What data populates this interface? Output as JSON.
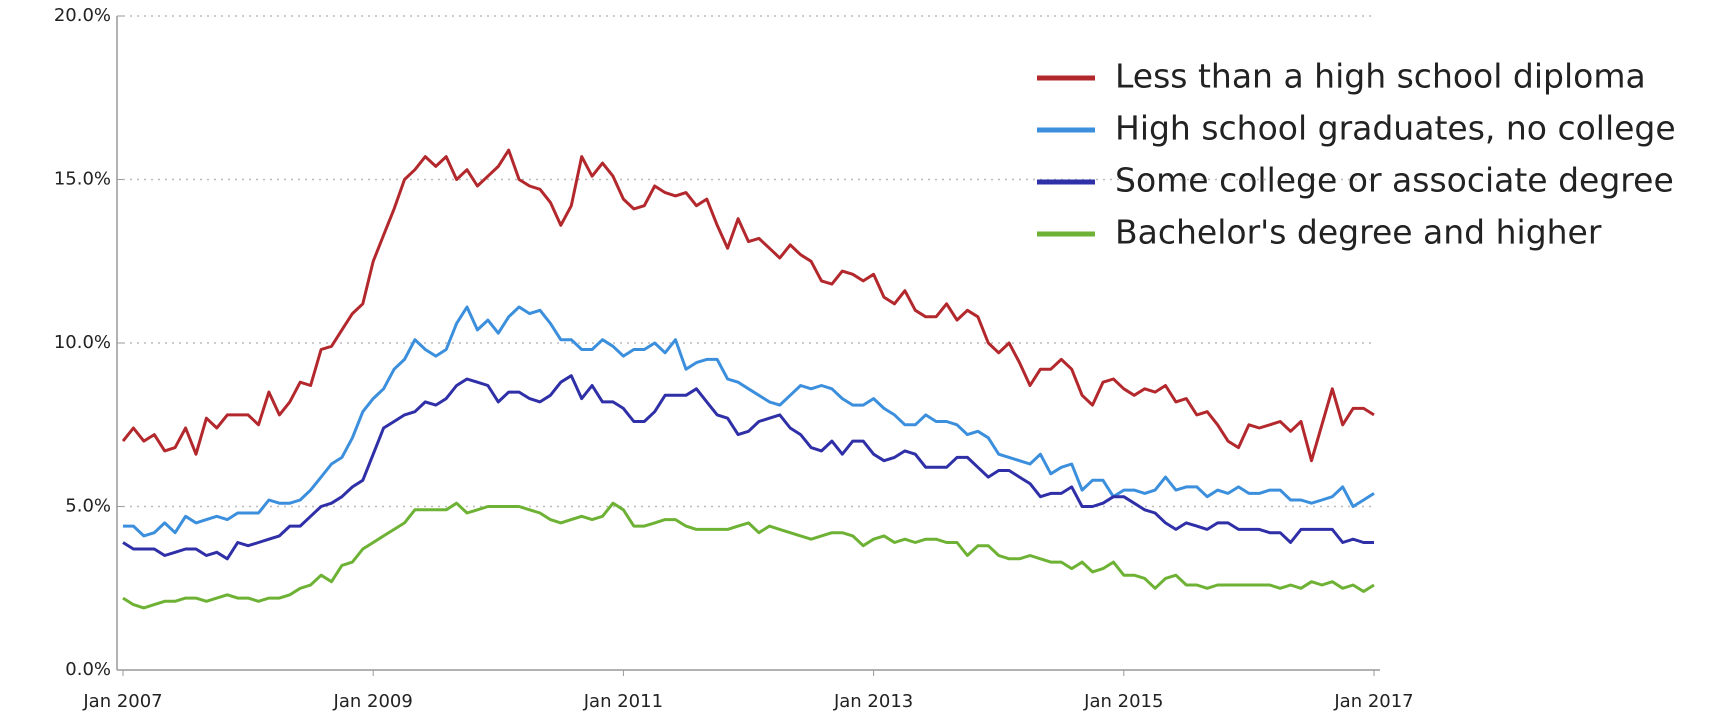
{
  "chart_data": {
    "type": "line",
    "x": [
      "2007-01",
      "2007-02",
      "2007-03",
      "2007-04",
      "2007-05",
      "2007-06",
      "2007-07",
      "2007-08",
      "2007-09",
      "2007-10",
      "2007-11",
      "2007-12",
      "2008-01",
      "2008-02",
      "2008-03",
      "2008-04",
      "2008-05",
      "2008-06",
      "2008-07",
      "2008-08",
      "2008-09",
      "2008-10",
      "2008-11",
      "2008-12",
      "2009-01",
      "2009-02",
      "2009-03",
      "2009-04",
      "2009-05",
      "2009-06",
      "2009-07",
      "2009-08",
      "2009-09",
      "2009-10",
      "2009-11",
      "2009-12",
      "2010-01",
      "2010-02",
      "2010-03",
      "2010-04",
      "2010-05",
      "2010-06",
      "2010-07",
      "2010-08",
      "2010-09",
      "2010-10",
      "2010-11",
      "2010-12",
      "2011-01",
      "2011-02",
      "2011-03",
      "2011-04",
      "2011-05",
      "2011-06",
      "2011-07",
      "2011-08",
      "2011-09",
      "2011-10",
      "2011-11",
      "2011-12",
      "2012-01",
      "2012-02",
      "2012-03",
      "2012-04",
      "2012-05",
      "2012-06",
      "2012-07",
      "2012-08",
      "2012-09",
      "2012-10",
      "2012-11",
      "2012-12",
      "2013-01",
      "2013-02",
      "2013-03",
      "2013-04",
      "2013-05",
      "2013-06",
      "2013-07",
      "2013-08",
      "2013-09",
      "2013-10",
      "2013-11",
      "2013-12",
      "2014-01",
      "2014-02",
      "2014-03",
      "2014-04",
      "2014-05",
      "2014-06",
      "2014-07",
      "2014-08",
      "2014-09",
      "2014-10",
      "2014-11",
      "2014-12",
      "2015-01",
      "2015-02",
      "2015-03",
      "2015-04",
      "2015-05",
      "2015-06",
      "2015-07",
      "2015-08",
      "2015-09",
      "2015-10",
      "2015-11",
      "2015-12",
      "2016-01",
      "2016-02",
      "2016-03",
      "2016-04",
      "2016-05",
      "2016-06",
      "2016-07",
      "2016-08",
      "2016-09",
      "2016-10",
      "2016-11",
      "2016-12",
      "2017-01"
    ],
    "series": [
      {
        "name": "Less than a high school diploma",
        "color": "#b3282d",
        "values": [
          7.0,
          7.4,
          7.0,
          7.2,
          6.7,
          6.8,
          7.4,
          6.6,
          7.7,
          7.4,
          7.8,
          7.8,
          7.8,
          7.5,
          8.5,
          7.8,
          8.2,
          8.8,
          8.7,
          9.8,
          9.9,
          10.4,
          10.9,
          11.2,
          12.5,
          13.3,
          14.1,
          15.0,
          15.3,
          15.7,
          15.4,
          15.7,
          15.0,
          15.3,
          14.8,
          15.1,
          15.4,
          15.9,
          15.0,
          14.8,
          14.7,
          14.3,
          13.6,
          14.2,
          15.7,
          15.1,
          15.5,
          15.1,
          14.4,
          14.1,
          14.2,
          14.8,
          14.6,
          14.5,
          14.6,
          14.2,
          14.4,
          13.6,
          12.9,
          13.8,
          13.1,
          13.2,
          12.9,
          12.6,
          13.0,
          12.7,
          12.5,
          11.9,
          11.8,
          12.2,
          12.1,
          11.9,
          12.1,
          11.4,
          11.2,
          11.6,
          11.0,
          10.8,
          10.8,
          11.2,
          10.7,
          11.0,
          10.8,
          10.0,
          9.7,
          10.0,
          9.4,
          8.7,
          9.2,
          9.2,
          9.5,
          9.2,
          8.4,
          8.1,
          8.8,
          8.9,
          8.6,
          8.4,
          8.6,
          8.5,
          8.7,
          8.2,
          8.3,
          7.8,
          7.9,
          7.5,
          7.0,
          6.8,
          7.5,
          7.4,
          7.5,
          7.6,
          7.3,
          7.6,
          6.4,
          7.5,
          8.6,
          7.5,
          8.0,
          8.0,
          7.8
        ]
      },
      {
        "name": "High school graduates, no college",
        "color": "#3b8fdc",
        "values": [
          4.4,
          4.4,
          4.1,
          4.2,
          4.5,
          4.2,
          4.7,
          4.5,
          4.6,
          4.7,
          4.6,
          4.8,
          4.8,
          4.8,
          5.2,
          5.1,
          5.1,
          5.2,
          5.5,
          5.9,
          6.3,
          6.5,
          7.1,
          7.9,
          8.3,
          8.6,
          9.2,
          9.5,
          10.1,
          9.8,
          9.6,
          9.8,
          10.6,
          11.1,
          10.4,
          10.7,
          10.3,
          10.8,
          11.1,
          10.9,
          11.0,
          10.6,
          10.1,
          10.1,
          9.8,
          9.8,
          10.1,
          9.9,
          9.6,
          9.8,
          9.8,
          10.0,
          9.7,
          10.1,
          9.2,
          9.4,
          9.5,
          9.5,
          8.9,
          8.8,
          8.6,
          8.4,
          8.2,
          8.1,
          8.4,
          8.7,
          8.6,
          8.7,
          8.6,
          8.3,
          8.1,
          8.1,
          8.3,
          8.0,
          7.8,
          7.5,
          7.5,
          7.8,
          7.6,
          7.6,
          7.5,
          7.2,
          7.3,
          7.1,
          6.6,
          6.5,
          6.4,
          6.3,
          6.6,
          6.0,
          6.2,
          6.3,
          5.5,
          5.8,
          5.8,
          5.3,
          5.5,
          5.5,
          5.4,
          5.5,
          5.9,
          5.5,
          5.6,
          5.6,
          5.3,
          5.5,
          5.4,
          5.6,
          5.4,
          5.4,
          5.5,
          5.5,
          5.2,
          5.2,
          5.1,
          5.2,
          5.3,
          5.6,
          5.0,
          5.2,
          5.4
        ]
      },
      {
        "name": "Some college or associate degree",
        "color": "#2f2fa8",
        "values": [
          3.9,
          3.7,
          3.7,
          3.7,
          3.5,
          3.6,
          3.7,
          3.7,
          3.5,
          3.6,
          3.4,
          3.9,
          3.8,
          3.9,
          4.0,
          4.1,
          4.4,
          4.4,
          4.7,
          5.0,
          5.1,
          5.3,
          5.6,
          5.8,
          6.6,
          7.4,
          7.6,
          7.8,
          7.9,
          8.2,
          8.1,
          8.3,
          8.7,
          8.9,
          8.8,
          8.7,
          8.2,
          8.5,
          8.5,
          8.3,
          8.2,
          8.4,
          8.8,
          9.0,
          8.3,
          8.7,
          8.2,
          8.2,
          8.0,
          7.6,
          7.6,
          7.9,
          8.4,
          8.4,
          8.4,
          8.6,
          8.2,
          7.8,
          7.7,
          7.2,
          7.3,
          7.6,
          7.7,
          7.8,
          7.4,
          7.2,
          6.8,
          6.7,
          7.0,
          6.6,
          7.0,
          7.0,
          6.6,
          6.4,
          6.5,
          6.7,
          6.6,
          6.2,
          6.2,
          6.2,
          6.5,
          6.5,
          6.2,
          5.9,
          6.1,
          6.1,
          5.9,
          5.7,
          5.3,
          5.4,
          5.4,
          5.6,
          5.0,
          5.0,
          5.1,
          5.3,
          5.3,
          5.1,
          4.9,
          4.8,
          4.5,
          4.3,
          4.5,
          4.4,
          4.3,
          4.5,
          4.5,
          4.3,
          4.3,
          4.3,
          4.2,
          4.2,
          3.9,
          4.3,
          4.3,
          4.3,
          4.3,
          3.9,
          4.0,
          3.9,
          3.9
        ]
      },
      {
        "name": "Bachelor's degree and higher",
        "color": "#6db234",
        "values": [
          2.2,
          2.0,
          1.9,
          2.0,
          2.1,
          2.1,
          2.2,
          2.2,
          2.1,
          2.2,
          2.3,
          2.2,
          2.2,
          2.1,
          2.2,
          2.2,
          2.3,
          2.5,
          2.6,
          2.9,
          2.7,
          3.2,
          3.3,
          3.7,
          3.9,
          4.1,
          4.3,
          4.5,
          4.9,
          4.9,
          4.9,
          4.9,
          5.1,
          4.8,
          4.9,
          5.0,
          5.0,
          5.0,
          5.0,
          4.9,
          4.8,
          4.6,
          4.5,
          4.6,
          4.7,
          4.6,
          4.7,
          5.1,
          4.9,
          4.4,
          4.4,
          4.5,
          4.6,
          4.6,
          4.4,
          4.3,
          4.3,
          4.3,
          4.3,
          4.4,
          4.5,
          4.2,
          4.4,
          4.3,
          4.2,
          4.1,
          4.0,
          4.1,
          4.2,
          4.2,
          4.1,
          3.8,
          4.0,
          4.1,
          3.9,
          4.0,
          3.9,
          4.0,
          4.0,
          3.9,
          3.9,
          3.5,
          3.8,
          3.8,
          3.5,
          3.4,
          3.4,
          3.5,
          3.4,
          3.3,
          3.3,
          3.1,
          3.3,
          3.0,
          3.1,
          3.3,
          2.9,
          2.9,
          2.8,
          2.5,
          2.8,
          2.9,
          2.6,
          2.6,
          2.5,
          2.6,
          2.6,
          2.6,
          2.6,
          2.6,
          2.6,
          2.5,
          2.6,
          2.5,
          2.7,
          2.6,
          2.7,
          2.5,
          2.6,
          2.4,
          2.6
        ]
      }
    ],
    "xlim": [
      "2007-01",
      "2017-01"
    ],
    "xticks": [
      {
        "value": "2007-01",
        "label": "Jan 2007"
      },
      {
        "value": "2009-01",
        "label": "Jan 2009"
      },
      {
        "value": "2011-01",
        "label": "Jan 2011"
      },
      {
        "value": "2013-01",
        "label": "Jan 2013"
      },
      {
        "value": "2015-01",
        "label": "Jan 2015"
      },
      {
        "value": "2017-01",
        "label": "Jan 2017"
      }
    ],
    "ylim": [
      0,
      20
    ],
    "yticks": [
      {
        "value": 0,
        "label": "0.0%"
      },
      {
        "value": 5,
        "label": "5.0%"
      },
      {
        "value": 10,
        "label": "10.0%"
      },
      {
        "value": 15,
        "label": "15.0%"
      },
      {
        "value": 20,
        "label": "20.0%"
      }
    ],
    "grid": true,
    "legend": "upper right"
  }
}
